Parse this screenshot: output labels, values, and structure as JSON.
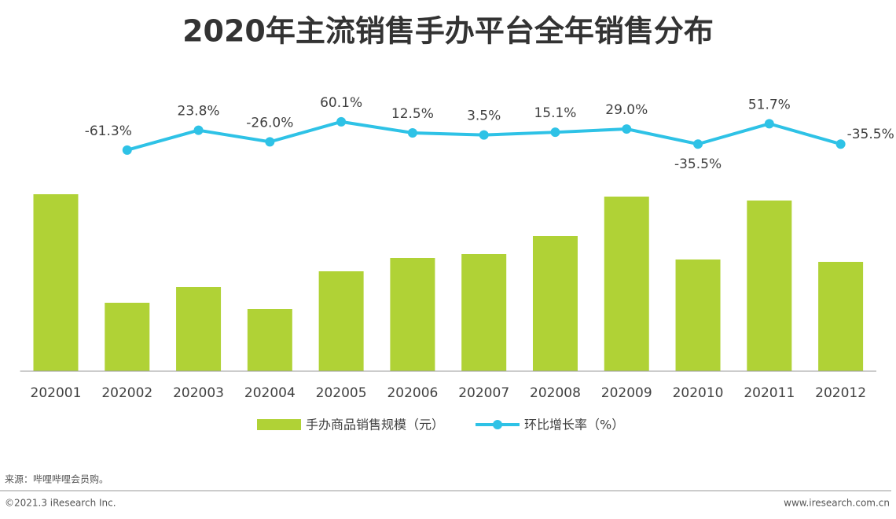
{
  "chart_data": {
    "type": "bar-line",
    "title": "2020年主流销售手办平台全年销售分布",
    "categories": [
      "202001",
      "202002",
      "202003",
      "202004",
      "202005",
      "202006",
      "202007",
      "202008",
      "202009",
      "202010",
      "202011",
      "202012"
    ],
    "ylim": [
      0,
      250
    ],
    "y2lim": [
      -200,
      100
    ],
    "series": [
      {
        "name": "手办商品销售规模（元）",
        "type": "bar",
        "color": "#b0d236",
        "values": [
          225,
          87,
          107,
          79,
          127,
          144,
          149,
          172,
          222,
          142,
          217,
          139
        ]
      },
      {
        "name": "环比增长率（%）",
        "type": "line",
        "axis": "y2",
        "color": "#2ec2e6",
        "values": [
          null,
          -61.3,
          23.8,
          -26.0,
          60.1,
          12.5,
          3.5,
          15.1,
          29.0,
          -35.5,
          51.7,
          -35.5
        ],
        "value_labels": [
          null,
          "-61.3%",
          "23.8%",
          "-26.0%",
          "60.1%",
          "12.5%",
          "3.5%",
          "15.1%",
          "29.0%",
          "-35.5%",
          "51.7%",
          "-35.5%"
        ]
      }
    ],
    "source": "来源：哔哩哔哩会员购。",
    "copyright": "©2021.3 iResearch Inc.",
    "website": "www.iresearch.com.cn"
  }
}
